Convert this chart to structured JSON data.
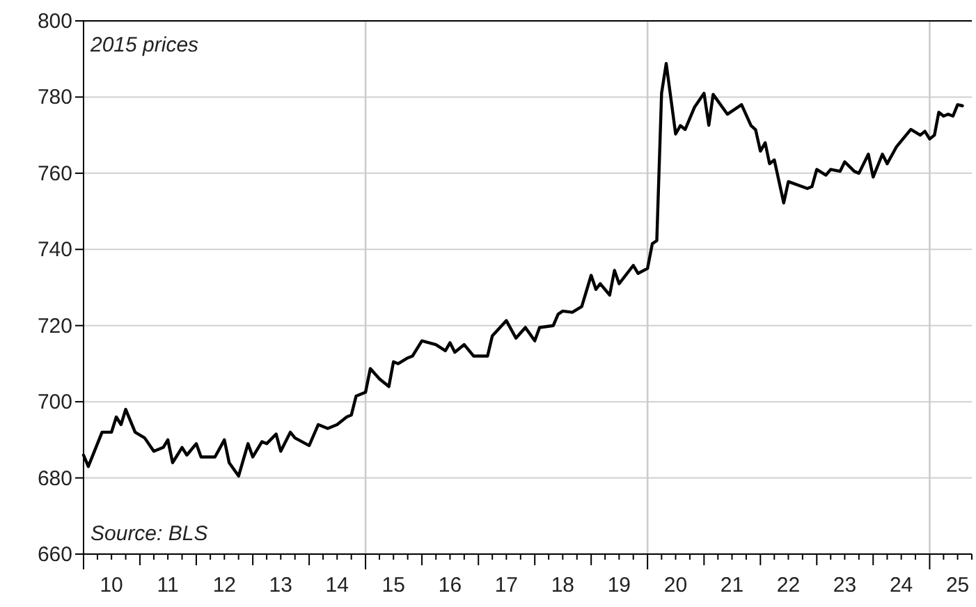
{
  "chart_data": {
    "type": "line",
    "annotations": [
      "2015 prices",
      "Source: BLS"
    ],
    "x": [
      "2010-01",
      "2010-02",
      "2010-05",
      "2010-07",
      "2010-08",
      "2010-09",
      "2010-10",
      "2010-12",
      "2011-02",
      "2011-04",
      "2011-06",
      "2011-07",
      "2011-08",
      "2011-10",
      "2011-11",
      "2012-01",
      "2012-02",
      "2012-05",
      "2012-07",
      "2012-08",
      "2012-10",
      "2012-12",
      "2013-01",
      "2013-03",
      "2013-04",
      "2013-06",
      "2013-07",
      "2013-09",
      "2013-10",
      "2014-01",
      "2014-03",
      "2014-05",
      "2014-07",
      "2014-09",
      "2014-10",
      "2014-11",
      "2015-01",
      "2015-02",
      "2015-04",
      "2015-06",
      "2015-07",
      "2015-08",
      "2015-10",
      "2015-11",
      "2016-01",
      "2016-04",
      "2016-06",
      "2016-07",
      "2016-08",
      "2016-10",
      "2016-12",
      "2017-03",
      "2017-04",
      "2017-07",
      "2017-09",
      "2017-11",
      "2018-01",
      "2018-02",
      "2018-05",
      "2018-06",
      "2018-07",
      "2018-09",
      "2018-11",
      "2019-01",
      "2019-02",
      "2019-03",
      "2019-05",
      "2019-06",
      "2019-07",
      "2019-10",
      "2019-11",
      "2020-01",
      "2020-02",
      "2020-03",
      "2020-04",
      "2020-05",
      "2020-07",
      "2020-08",
      "2020-09",
      "2020-11",
      "2021-01",
      "2021-02",
      "2021-03",
      "2021-06",
      "2021-09",
      "2021-11",
      "2021-12",
      "2022-01",
      "2022-02",
      "2022-03",
      "2022-04",
      "2022-06",
      "2022-07",
      "2022-11",
      "2022-12",
      "2023-01",
      "2023-03",
      "2023-04",
      "2023-06",
      "2023-07",
      "2023-09",
      "2023-10",
      "2023-12",
      "2024-01",
      "2024-03",
      "2024-04",
      "2024-06",
      "2024-09",
      "2024-11",
      "2024-12",
      "2025-01",
      "2025-02",
      "2025-03",
      "2025-04",
      "2025-05",
      "2025-06",
      "2025-07",
      "2025-08"
    ],
    "series": [
      {
        "color": "#000000",
        "values": [
          686,
          683,
          692,
          692,
          696,
          694,
          698,
          692,
          690.5,
          687,
          688,
          690,
          684,
          688,
          686,
          689,
          685.5,
          685.5,
          690,
          684,
          680.5,
          689,
          685.5,
          689.5,
          689,
          691.5,
          687,
          692,
          690.5,
          688.5,
          694,
          693,
          694,
          696,
          696.5,
          701.5,
          702.5,
          708.7,
          706,
          704,
          710.5,
          710,
          711.5,
          712,
          716,
          715,
          713.4,
          715.5,
          713,
          715,
          712,
          712,
          717.3,
          721.3,
          716.7,
          719.5,
          716,
          719.5,
          720,
          723,
          723.8,
          723.5,
          725,
          733.2,
          729.5,
          731,
          728,
          734.5,
          731,
          735.8,
          733.7,
          735,
          741.5,
          742.3,
          781,
          788.8,
          770.3,
          772.5,
          771.5,
          777.4,
          781,
          772.6,
          780.7,
          775.5,
          778,
          772.5,
          771.4,
          765.8,
          768,
          762.5,
          763.5,
          752.2,
          757.8,
          756,
          756.5,
          761,
          759.5,
          761,
          760.5,
          763,
          760.5,
          760,
          765,
          759,
          765,
          762.5,
          767,
          771.5,
          770,
          771,
          769,
          770,
          776,
          775,
          775.5,
          775,
          778,
          777.7
        ]
      }
    ],
    "xlim": [
      "2010-01-01",
      "2025-10-01"
    ],
    "xticks": [
      {
        "value": "2010-07-01",
        "label": "10"
      },
      {
        "value": "2011-07-01",
        "label": "11"
      },
      {
        "value": "2012-07-01",
        "label": "12"
      },
      {
        "value": "2013-07-01",
        "label": "13"
      },
      {
        "value": "2014-07-01",
        "label": "14"
      },
      {
        "value": "2015-07-01",
        "label": "15"
      },
      {
        "value": "2016-07-01",
        "label": "16"
      },
      {
        "value": "2017-07-01",
        "label": "17"
      },
      {
        "value": "2018-07-01",
        "label": "18"
      },
      {
        "value": "2019-07-01",
        "label": "19"
      },
      {
        "value": "2020-07-01",
        "label": "20"
      },
      {
        "value": "2021-07-01",
        "label": "21"
      },
      {
        "value": "2022-07-01",
        "label": "22"
      },
      {
        "value": "2023-07-01",
        "label": "23"
      },
      {
        "value": "2024-07-01",
        "label": "24"
      },
      {
        "value": "2025-07-01",
        "label": "25"
      }
    ],
    "ylim": [
      660,
      800
    ],
    "yticks": [
      660,
      680,
      700,
      720,
      740,
      760,
      780,
      800
    ],
    "grid": "y",
    "ref_lines": [
      {
        "axis": "x",
        "value": "2015-01-01",
        "color": "#cccccc"
      },
      {
        "axis": "x",
        "value": "2020-01-01",
        "color": "#cccccc"
      },
      {
        "axis": "x",
        "value": "2025-01-01",
        "color": "#cccccc"
      }
    ],
    "line_style": "solid",
    "marker": "none"
  }
}
